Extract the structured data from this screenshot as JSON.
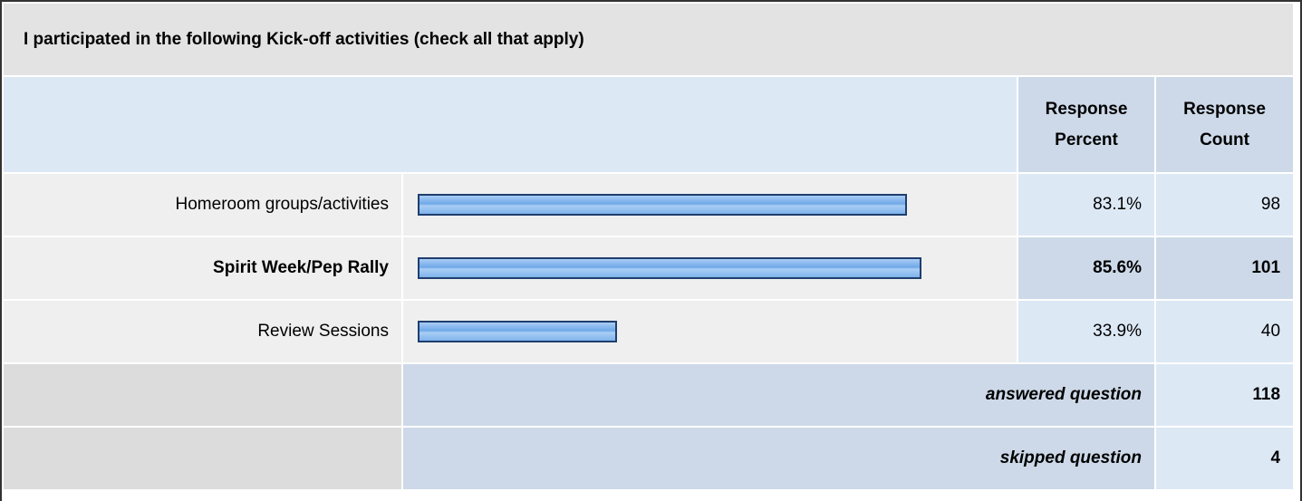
{
  "title": "I participated in the following Kick-off activities (check all that apply)",
  "headers": [
    "Response Percent",
    "Response Count"
  ],
  "rows": [
    {
      "label": "Homeroom groups/activities",
      "percent": 83.1,
      "percent_label": "83.1%",
      "count": 98
    },
    {
      "label": "Spirit Week/Pep Rally",
      "percent": 85.6,
      "percent_label": "85.6%",
      "count": 101
    },
    {
      "label": "Review Sessions",
      "percent": 33.9,
      "percent_label": "33.9%",
      "count": 40
    }
  ],
  "highlight_row": 1,
  "answered": {
    "label": "answered question",
    "value": 118
  },
  "skipped": {
    "label": "skipped question",
    "value": 4
  }
}
